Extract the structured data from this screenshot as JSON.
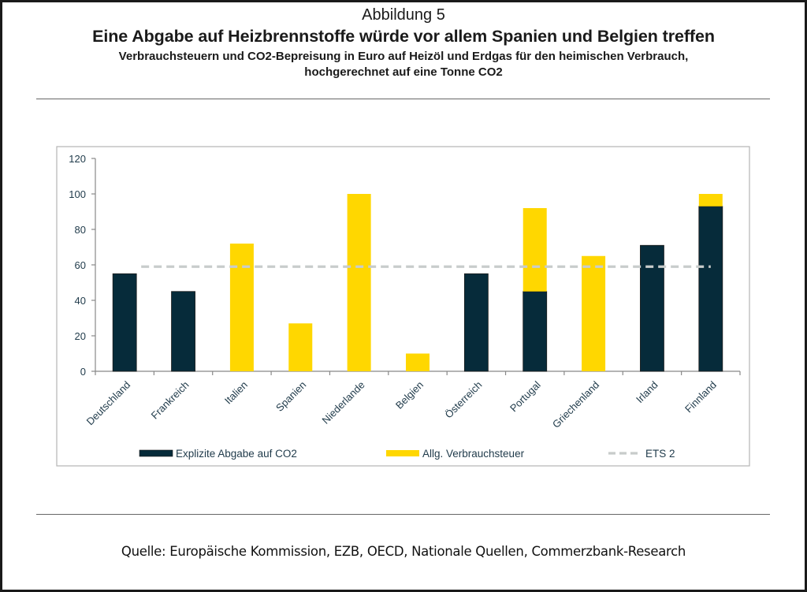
{
  "figure": {
    "label": "Abbildung 5",
    "title": "Eine Abgabe auf Heizbrennstoffe würde vor allem Spanien und Belgien treffen",
    "subtitle_line1": "Verbrauchsteuern und CO2-Bepreisung in Euro auf Heizöl und Erdgas für den heimischen Verbrauch,",
    "subtitle_line2": "hochgerechnet auf eine Tonne CO2",
    "source": "Quelle: Europäische Kommission, EZB, OECD, Nationale Quellen, Commerzbank-Research"
  },
  "colors": {
    "explicit_co2": "#062b3a",
    "excise_tax": "#ffd700",
    "ets2": "#c8cccb",
    "axis": "#888888",
    "text": "#1f3a4a"
  },
  "chart_data": {
    "type": "bar",
    "stacked": true,
    "title": "Eine Abgabe auf Heizbrennstoffe würde vor allem Spanien und Belgien treffen",
    "xlabel": "",
    "ylabel": "",
    "ylim": [
      0,
      120
    ],
    "yticks": [
      0,
      20,
      40,
      60,
      80,
      100,
      120
    ],
    "grid": false,
    "legend_position": "bottom",
    "categories": [
      "Deutschland",
      "Frankreich",
      "Italien",
      "Spanien",
      "Niederlande",
      "Belgien",
      "Österreich",
      "Portugal",
      "Griechenland",
      "Irland",
      "Finnland"
    ],
    "series": [
      {
        "name": "Explizite Abgabe auf CO2",
        "color_key": "explicit_co2",
        "values": [
          55,
          45,
          0,
          0,
          0,
          0,
          55,
          45,
          0,
          71,
          93
        ]
      },
      {
        "name": "Allg. Verbrauchsteuer",
        "color_key": "excise_tax",
        "values": [
          0,
          0,
          72,
          27,
          100,
          10,
          0,
          47,
          65,
          0,
          7
        ]
      }
    ],
    "reference_lines": [
      {
        "name": "ETS 2",
        "color_key": "ets2",
        "style": "dashed",
        "value": 59
      }
    ]
  }
}
